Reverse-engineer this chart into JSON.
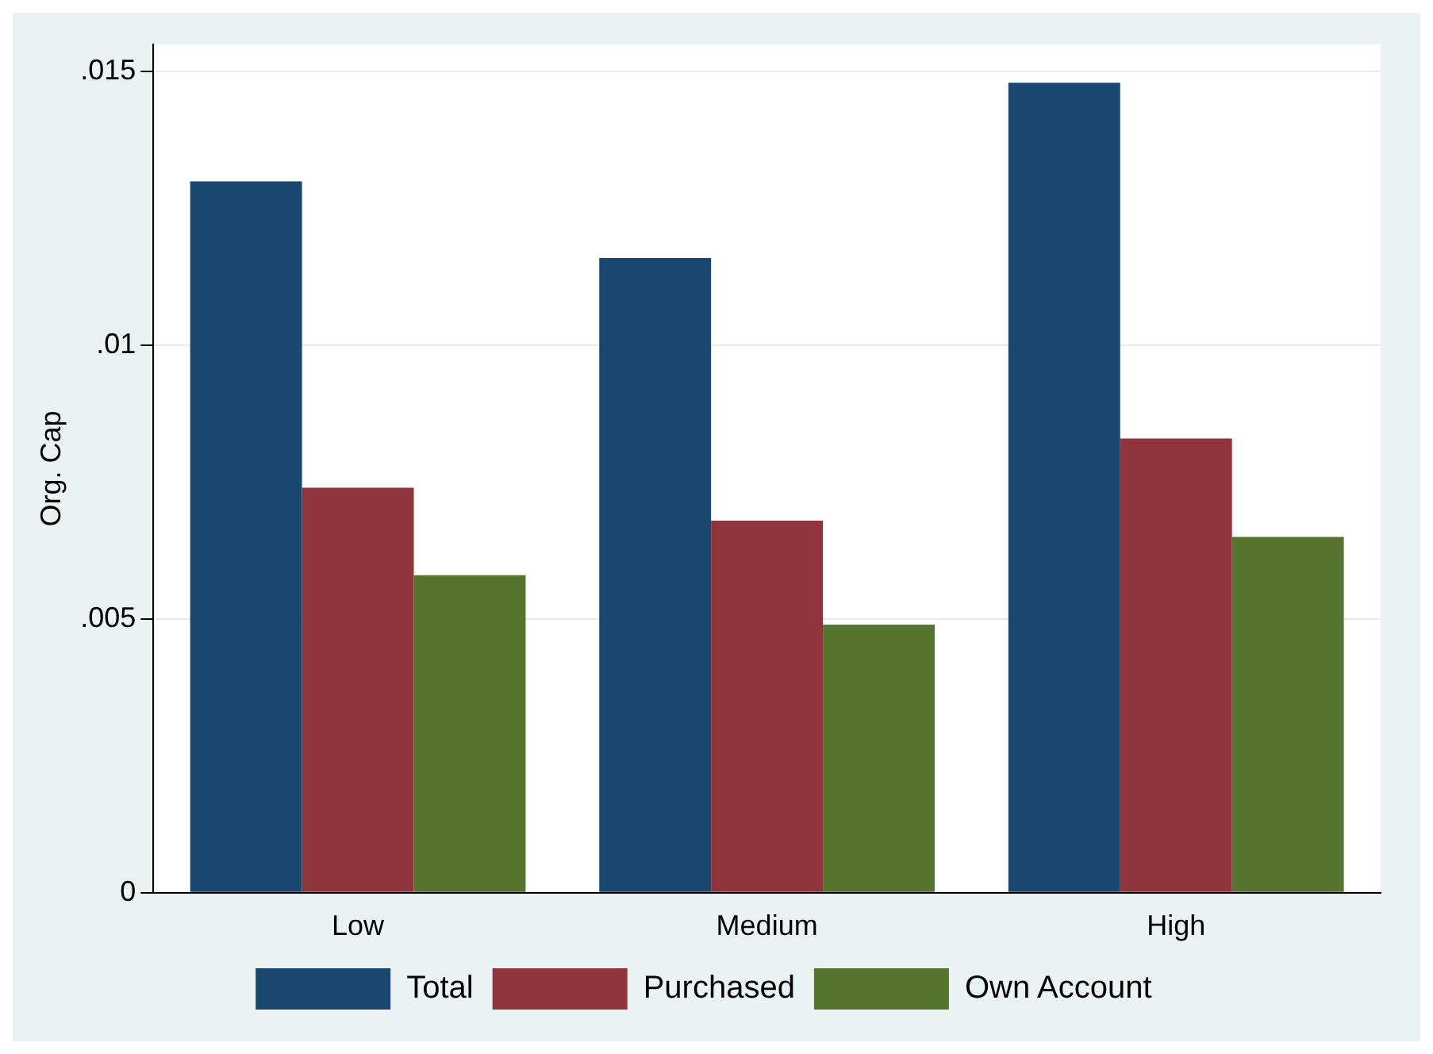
{
  "chart_data": {
    "type": "bar",
    "ylabel": "Org. Cap",
    "categories": [
      "Low",
      "Medium",
      "High"
    ],
    "series": [
      {
        "name": "Total",
        "color": "#1a476f",
        "values": [
          0.013,
          0.0116,
          0.0148
        ]
      },
      {
        "name": "Purchased",
        "color": "#90353b",
        "values": [
          0.0074,
          0.0068,
          0.0083
        ]
      },
      {
        "name": "Own Account",
        "color": "#55752f",
        "values": [
          0.0058,
          0.0049,
          0.0065
        ]
      }
    ],
    "ylim": [
      0,
      0.0155
    ],
    "yticks": [
      0,
      {
        "value": 0.005,
        "label": ".005"
      },
      {
        "value": 0.01,
        "label": ".01"
      },
      {
        "value": 0.015,
        "label": ".015"
      }
    ],
    "grid": "y",
    "legend": "bottom"
  }
}
